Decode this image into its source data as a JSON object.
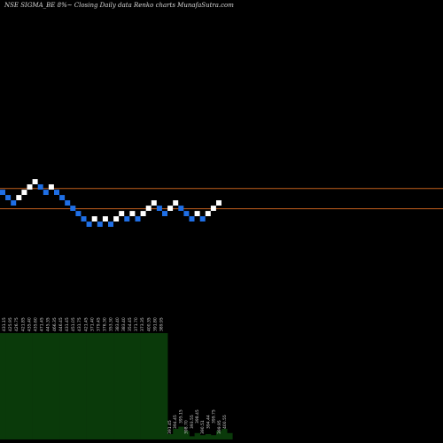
{
  "chart_data": {
    "type": "renko",
    "title": "NSE SIGMA_BE 8%~  Closing Daily data  Renko  charts MunafaSutra.com",
    "reference_lines": [
      423.5,
      404.5
    ],
    "reference_line_color": "#c2601e",
    "up_color": "#ffffff",
    "down_color": "#1f6fe6",
    "volume_color": "#0a3a0a",
    "price_range": [
      368,
      450
    ],
    "bricks": [
      {
        "index": 0,
        "price": 420,
        "dir": "down"
      },
      {
        "index": 1,
        "price": 415,
        "dir": "down"
      },
      {
        "index": 2,
        "price": 410,
        "dir": "down"
      },
      {
        "index": 3,
        "price": 415,
        "dir": "up"
      },
      {
        "index": 4,
        "price": 420,
        "dir": "up"
      },
      {
        "index": 5,
        "price": 425,
        "dir": "up"
      },
      {
        "index": 6,
        "price": 430,
        "dir": "up"
      },
      {
        "index": 7,
        "price": 425,
        "dir": "down"
      },
      {
        "index": 8,
        "price": 420,
        "dir": "down"
      },
      {
        "index": 9,
        "price": 425,
        "dir": "up"
      },
      {
        "index": 10,
        "price": 420,
        "dir": "down"
      },
      {
        "index": 11,
        "price": 415,
        "dir": "down"
      },
      {
        "index": 12,
        "price": 410,
        "dir": "down"
      },
      {
        "index": 13,
        "price": 405,
        "dir": "down"
      },
      {
        "index": 14,
        "price": 400,
        "dir": "down"
      },
      {
        "index": 15,
        "price": 395,
        "dir": "down"
      },
      {
        "index": 16,
        "price": 390,
        "dir": "down"
      },
      {
        "index": 17,
        "price": 395,
        "dir": "up"
      },
      {
        "index": 18,
        "price": 390,
        "dir": "down"
      },
      {
        "index": 19,
        "price": 395,
        "dir": "up"
      },
      {
        "index": 20,
        "price": 390,
        "dir": "down"
      },
      {
        "index": 21,
        "price": 395,
        "dir": "up"
      },
      {
        "index": 22,
        "price": 400,
        "dir": "up"
      },
      {
        "index": 23,
        "price": 395,
        "dir": "down"
      },
      {
        "index": 24,
        "price": 400,
        "dir": "up"
      },
      {
        "index": 25,
        "price": 395,
        "dir": "down"
      },
      {
        "index": 26,
        "price": 400,
        "dir": "up"
      },
      {
        "index": 27,
        "price": 405,
        "dir": "up"
      },
      {
        "index": 28,
        "price": 410,
        "dir": "up"
      },
      {
        "index": 29,
        "price": 405,
        "dir": "down"
      },
      {
        "index": 30,
        "price": 400,
        "dir": "down"
      },
      {
        "index": 31,
        "price": 405,
        "dir": "up"
      },
      {
        "index": 32,
        "price": 410,
        "dir": "up"
      },
      {
        "index": 33,
        "price": 405,
        "dir": "down"
      },
      {
        "index": 34,
        "price": 400,
        "dir": "down"
      },
      {
        "index": 35,
        "price": 395,
        "dir": "down"
      },
      {
        "index": 36,
        "price": 400,
        "dir": "up"
      },
      {
        "index": 37,
        "price": 395,
        "dir": "down"
      },
      {
        "index": 38,
        "price": 400,
        "dir": "up"
      },
      {
        "index": 39,
        "price": 405,
        "dir": "up"
      },
      {
        "index": 40,
        "price": 410,
        "dir": "up"
      }
    ],
    "volume_labels_left": [
      "431.15",
      "425.95",
      "426.75",
      "421.85",
      "435.40",
      "435.60",
      "471.45",
      "445.35",
      "466.35",
      "446.45",
      "431.45",
      "451.05",
      "431.75",
      "421.45",
      "371.40",
      "379.45",
      "376.30",
      "353.30",
      "383.40",
      "383.40",
      "354.45",
      "371.70",
      "373.35",
      "400.35",
      "391.80",
      "389.95"
    ],
    "volume_labels_right": [
      "391.45",
      "394.45",
      "395.15",
      "398.70",
      "393.55",
      "398.45",
      "390.51",
      "394.44",
      "399.75",
      "399.95",
      "400.55"
    ],
    "volume": [
      {
        "index": 0,
        "value": 100
      },
      {
        "index": 1,
        "value": 100
      },
      {
        "index": 2,
        "value": 100
      },
      {
        "index": 3,
        "value": 100
      },
      {
        "index": 4,
        "value": 100
      },
      {
        "index": 5,
        "value": 100
      },
      {
        "index": 6,
        "value": 100
      },
      {
        "index": 7,
        "value": 100
      },
      {
        "index": 8,
        "value": 100
      },
      {
        "index": 9,
        "value": 100
      },
      {
        "index": 10,
        "value": 100
      },
      {
        "index": 11,
        "value": 100
      },
      {
        "index": 12,
        "value": 100
      },
      {
        "index": 13,
        "value": 100
      },
      {
        "index": 14,
        "value": 100
      },
      {
        "index": 15,
        "value": 100
      },
      {
        "index": 16,
        "value": 100
      },
      {
        "index": 17,
        "value": 100
      },
      {
        "index": 18,
        "value": 100
      },
      {
        "index": 19,
        "value": 100
      },
      {
        "index": 20,
        "value": 100
      },
      {
        "index": 21,
        "value": 100
      },
      {
        "index": 22,
        "value": 100
      },
      {
        "index": 23,
        "value": 100
      },
      {
        "index": 24,
        "value": 100
      },
      {
        "index": 25,
        "value": 100
      },
      {
        "index": 26,
        "value": 100
      },
      {
        "index": 27,
        "value": 100
      },
      {
        "index": 28,
        "value": 100
      },
      {
        "index": 29,
        "value": 100
      },
      {
        "index": 30,
        "value": 100
      },
      {
        "index": 31,
        "value": 5
      },
      {
        "index": 32,
        "value": 10
      },
      {
        "index": 33,
        "value": 12
      },
      {
        "index": 34,
        "value": 8
      },
      {
        "index": 35,
        "value": 3
      },
      {
        "index": 36,
        "value": 6
      },
      {
        "index": 37,
        "value": 4
      },
      {
        "index": 38,
        "value": 5
      },
      {
        "index": 39,
        "value": 4
      },
      {
        "index": 40,
        "value": 8
      },
      {
        "index": 41,
        "value": 10
      },
      {
        "index": 42,
        "value": 6
      }
    ]
  }
}
